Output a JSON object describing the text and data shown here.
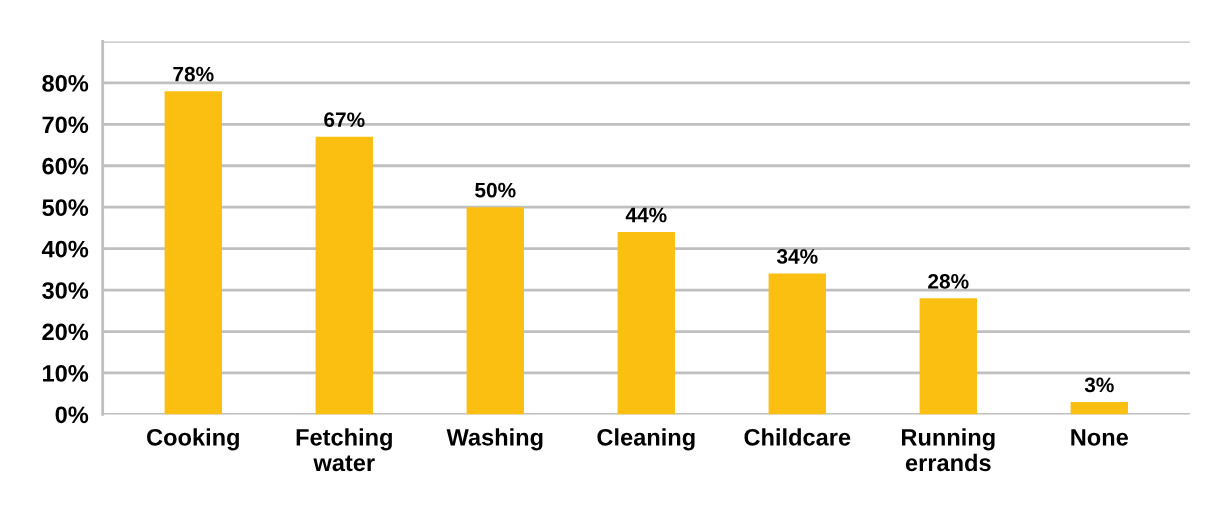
{
  "chart_data": {
    "type": "bar",
    "categories": [
      "Cooking",
      "Fetching\nwater",
      "Washing",
      "Cleaning",
      "Childcare",
      "Running\nerrands",
      "None"
    ],
    "values": [
      78,
      67,
      50,
      44,
      34,
      28,
      3
    ],
    "value_labels": [
      "78%",
      "67%",
      "50%",
      "44%",
      "34%",
      "28%",
      "3%"
    ],
    "color": "#fbbf12",
    "ylim": [
      0,
      90
    ],
    "yticks": [
      {
        "value": 0,
        "label": "0%"
      },
      {
        "value": 10,
        "label": "10%"
      },
      {
        "value": 20,
        "label": "20%"
      },
      {
        "value": 30,
        "label": "30%"
      },
      {
        "value": 40,
        "label": "40%"
      },
      {
        "value": 50,
        "label": "50%"
      },
      {
        "value": 60,
        "label": "60%"
      },
      {
        "value": 70,
        "label": "70%"
      },
      {
        "value": 80,
        "label": "80%"
      },
      {
        "value": 90,
        "label": null
      }
    ],
    "grid": "y"
  }
}
